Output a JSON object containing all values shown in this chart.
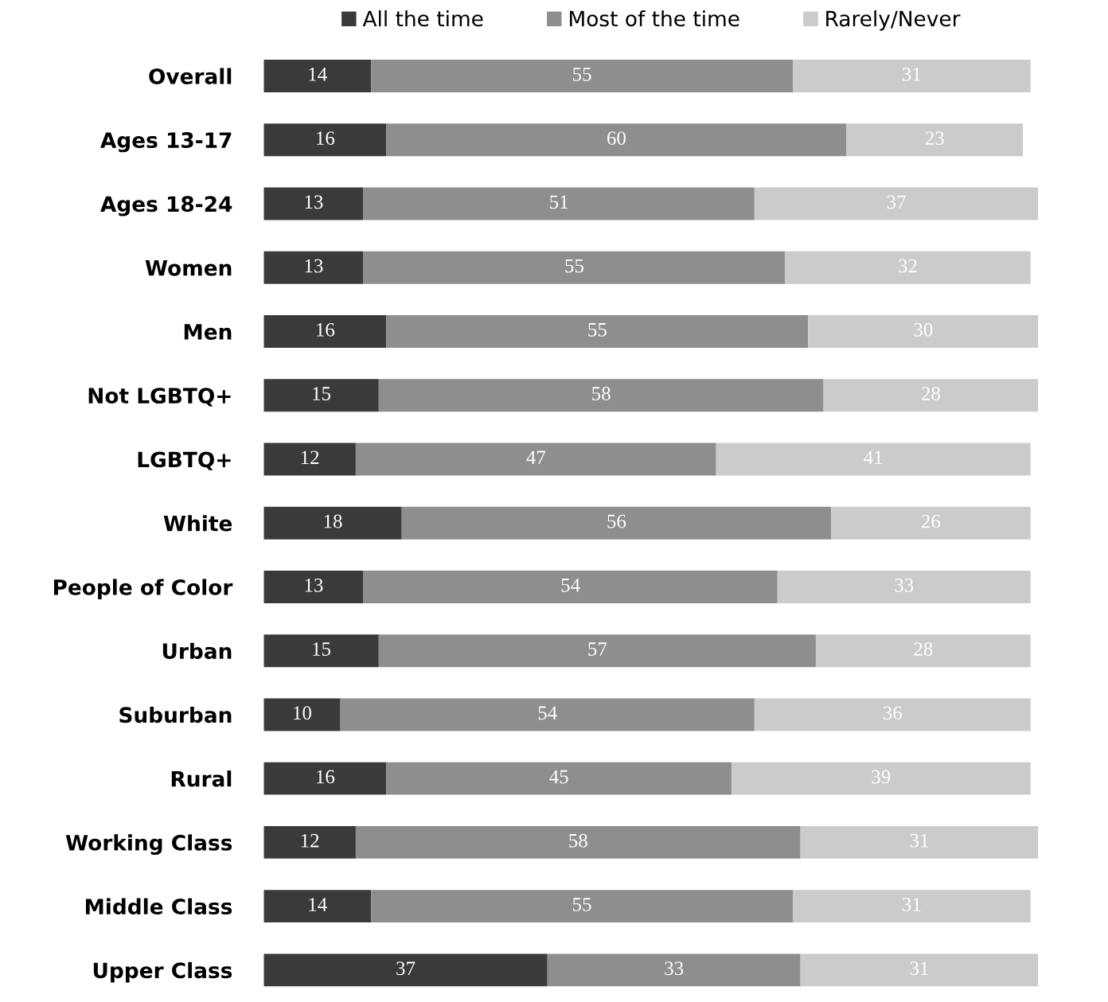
{
  "chart_data": {
    "type": "bar",
    "orientation": "horizontal",
    "stacked": true,
    "data_labels": true,
    "legend": "top",
    "grid": false,
    "categories": [
      "Overall",
      "Ages 13-17",
      "Ages 18-24",
      "Women",
      "Men",
      "Not LGBTQ+",
      "LGBTQ+",
      "White",
      "People of Color",
      "Urban",
      "Suburban",
      "Rural",
      "Working Class",
      "Middle Class",
      "Upper Class"
    ],
    "series": [
      {
        "name": "All the time",
        "color": "#3a3a3a",
        "values": [
          14,
          16,
          13,
          13,
          16,
          15,
          12,
          18,
          13,
          15,
          10,
          16,
          12,
          14,
          37
        ]
      },
      {
        "name": "Most of the time",
        "color": "#8e8e8e",
        "values": [
          55,
          60,
          51,
          55,
          55,
          58,
          47,
          56,
          54,
          57,
          54,
          45,
          58,
          55,
          33
        ]
      },
      {
        "name": "Rarely/Never",
        "color": "#cbcbcb",
        "values": [
          31,
          23,
          37,
          32,
          30,
          28,
          41,
          26,
          33,
          28,
          36,
          39,
          31,
          31,
          31
        ]
      }
    ]
  }
}
